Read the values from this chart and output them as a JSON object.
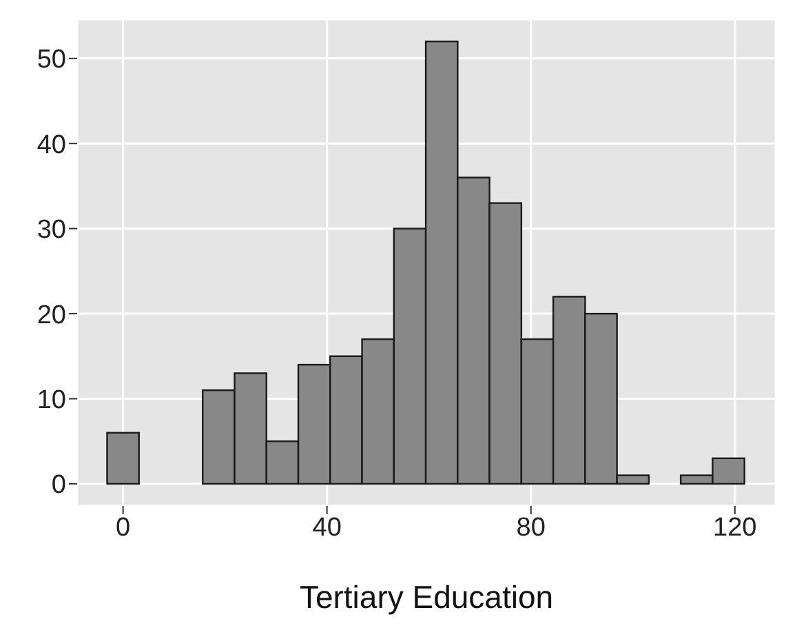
{
  "chart_data": {
    "type": "histogram",
    "xlabel": "Tertiary Education",
    "bins": [
      -3.125,
      3.125,
      9.375,
      15.625,
      21.875,
      28.125,
      34.375,
      40.625,
      46.875,
      53.125,
      59.375,
      65.625,
      71.875,
      78.125,
      84.375,
      90.625,
      96.875,
      103.125,
      109.375,
      115.625,
      121.875
    ],
    "values": [
      6,
      0,
      0,
      11,
      13,
      5,
      14,
      15,
      17,
      30,
      52,
      36,
      33,
      17,
      22,
      20,
      1,
      0,
      1,
      3
    ],
    "color": "#888888",
    "xlim": [
      -9,
      128
    ],
    "xticks": [
      0,
      40,
      80,
      120
    ],
    "ylim": [
      -2.6,
      54.6
    ],
    "yticks": [
      0,
      10,
      20,
      30,
      40,
      50
    ],
    "grid": true
  }
}
